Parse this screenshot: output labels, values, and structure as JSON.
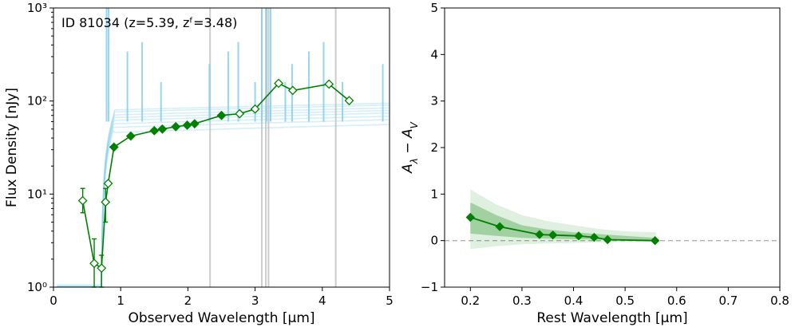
{
  "chart_data": [
    {
      "type": "line",
      "annotation": "ID 81034 (z=5.39, zᶠ=3.48)",
      "xlabel": "Observed Wavelength [μm]",
      "ylabel": "Flux Density [nJy]",
      "xlim": [
        0,
        5
      ],
      "ylim": [
        1,
        1000
      ],
      "yscale": "log",
      "x_ticks": [
        "0",
        "1",
        "2",
        "3",
        "4",
        "5"
      ],
      "y_ticks": [
        {
          "value": 1,
          "label": "10⁰"
        },
        {
          "value": 10,
          "label": "10¹"
        },
        {
          "value": 100,
          "label": "10²"
        },
        {
          "value": 1000,
          "label": "10³"
        }
      ],
      "emission_line_markers_um": [
        2.33,
        3.1,
        3.16,
        3.2,
        4.2
      ],
      "model_color": "#87ceeb",
      "photometry_color": "#008000",
      "photometry": [
        {
          "x": 0.435,
          "y": 8.5,
          "err_lo": 6.3,
          "err_hi": 11.5,
          "filled": false
        },
        {
          "x": 0.606,
          "y": 1.8,
          "err_lo": 1.0,
          "err_hi": 3.3,
          "filled": false
        },
        {
          "x": 0.715,
          "y": 1.6,
          "err_lo": 1.0,
          "err_hi": 2.2,
          "filled": false
        },
        {
          "x": 0.775,
          "y": 8.2,
          "err_lo": 5.0,
          "err_hi": 11.5,
          "filled": false
        },
        {
          "x": 0.814,
          "y": 13.0,
          "err_lo": null,
          "err_hi": null,
          "filled": false
        },
        {
          "x": 0.9,
          "y": 32.0,
          "err_lo": null,
          "err_hi": null,
          "filled": true
        },
        {
          "x": 1.15,
          "y": 42.0,
          "err_lo": null,
          "err_hi": null,
          "filled": true
        },
        {
          "x": 1.5,
          "y": 48.0,
          "err_lo": null,
          "err_hi": null,
          "filled": true
        },
        {
          "x": 1.62,
          "y": 50.0,
          "err_lo": null,
          "err_hi": null,
          "filled": true
        },
        {
          "x": 1.82,
          "y": 53.0,
          "err_lo": null,
          "err_hi": null,
          "filled": true
        },
        {
          "x": 1.99,
          "y": 55.0,
          "err_lo": null,
          "err_hi": null,
          "filled": true
        },
        {
          "x": 2.1,
          "y": 57.0,
          "err_lo": null,
          "err_hi": null,
          "filled": true
        },
        {
          "x": 2.5,
          "y": 70.0,
          "err_lo": null,
          "err_hi": null,
          "filled": true
        },
        {
          "x": 2.77,
          "y": 73.0,
          "err_lo": null,
          "err_hi": null,
          "filled": false
        },
        {
          "x": 3.0,
          "y": 82.0,
          "err_lo": null,
          "err_hi": null,
          "filled": false
        },
        {
          "x": 3.35,
          "y": 155.0,
          "err_lo": null,
          "err_hi": null,
          "filled": false
        },
        {
          "x": 3.56,
          "y": 130.0,
          "err_lo": null,
          "err_hi": null,
          "filled": false
        },
        {
          "x": 4.1,
          "y": 152.0,
          "err_lo": null,
          "err_hi": null,
          "filled": false
        },
        {
          "x": 4.4,
          "y": 101.0,
          "err_lo": null,
          "err_hi": null,
          "filled": false
        }
      ]
    },
    {
      "type": "line",
      "xlabel": "Rest Wavelength [μm]",
      "ylabel_main": "A",
      "ylabel_sub1": "λ",
      "ylabel_mid": " − A",
      "ylabel_sub2": "V",
      "xlim": [
        0.15,
        0.8
      ],
      "ylim": [
        -1,
        5
      ],
      "x_ticks": [
        {
          "value": 0.2,
          "label": "0.2"
        },
        {
          "value": 0.3,
          "label": "0.3"
        },
        {
          "value": 0.4,
          "label": "0.4"
        },
        {
          "value": 0.5,
          "label": "0.5"
        },
        {
          "value": 0.6,
          "label": "0.6"
        },
        {
          "value": 0.7,
          "label": "0.7"
        },
        {
          "value": 0.8,
          "label": "0.8"
        }
      ],
      "y_ticks": [
        {
          "value": -1,
          "label": "−1"
        },
        {
          "value": 0,
          "label": "0"
        },
        {
          "value": 1,
          "label": "1"
        },
        {
          "value": 2,
          "label": "2"
        },
        {
          "value": 3,
          "label": "3"
        },
        {
          "value": 4,
          "label": "4"
        },
        {
          "value": 5,
          "label": "5"
        }
      ],
      "reference_line_y": 0,
      "band_x": [
        0.2,
        0.25,
        0.3,
        0.35,
        0.4,
        0.45,
        0.5,
        0.56
      ],
      "band_outer_lo": [
        -0.18,
        -0.12,
        -0.08,
        -0.06,
        -0.05,
        -0.04,
        -0.03,
        -0.02
      ],
      "band_outer_hi": [
        1.1,
        0.78,
        0.55,
        0.42,
        0.33,
        0.25,
        0.2,
        0.18
      ],
      "band_inner_lo": [
        0.15,
        0.1,
        0.06,
        0.04,
        0.03,
        0.02,
        0.01,
        -0.01
      ],
      "band_inner_hi": [
        0.82,
        0.55,
        0.33,
        0.24,
        0.18,
        0.14,
        0.1,
        0.06
      ],
      "points_x": [
        0.2,
        0.257,
        0.334,
        0.36,
        0.41,
        0.44,
        0.466,
        0.558
      ],
      "points_y": [
        0.5,
        0.3,
        0.13,
        0.12,
        0.1,
        0.07,
        0.02,
        0.0
      ],
      "color": "#008000"
    }
  ]
}
